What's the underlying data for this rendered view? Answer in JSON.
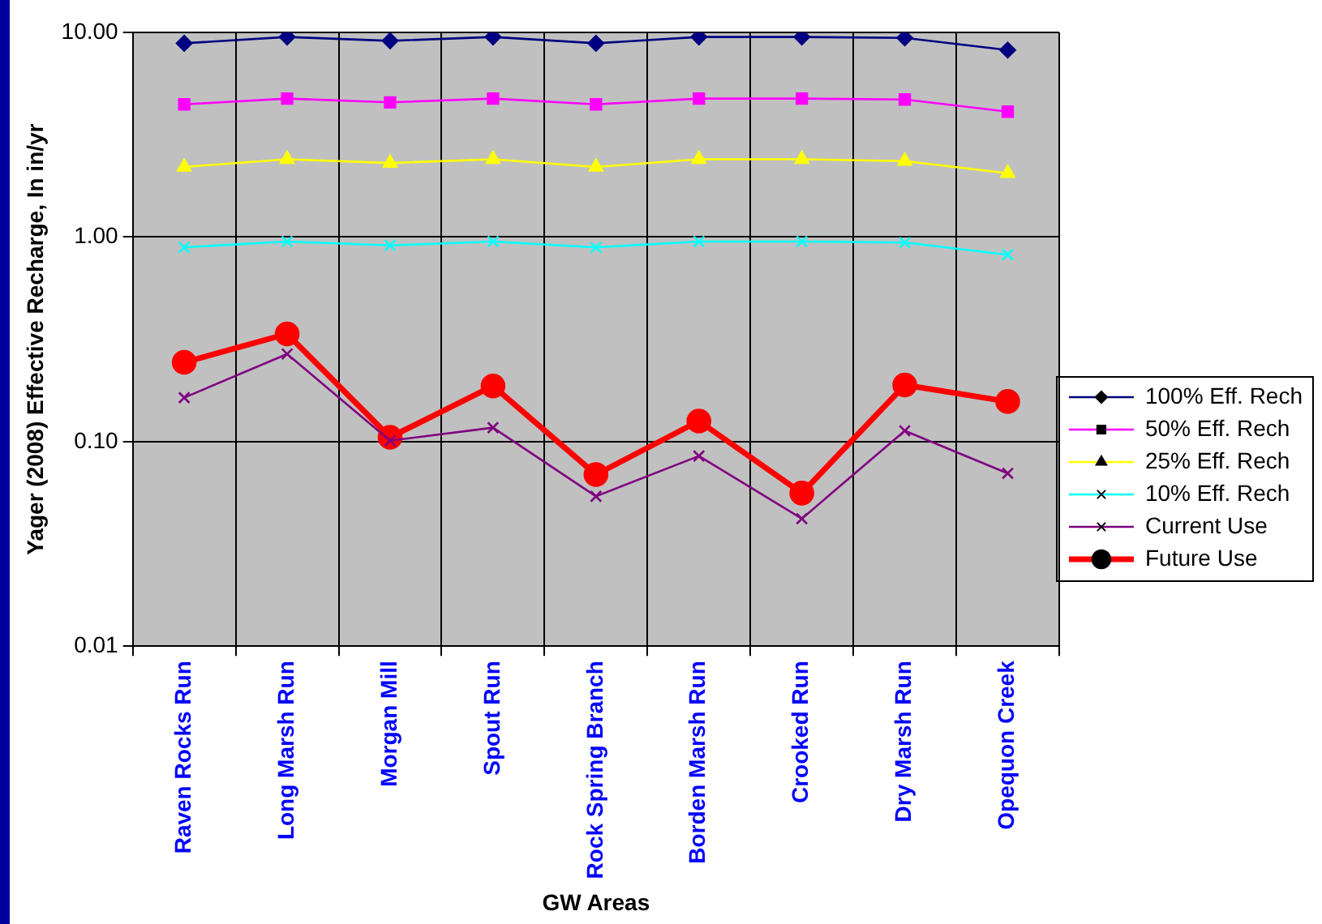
{
  "chart_data": {
    "type": "line",
    "xlabel": "GW Areas",
    "ylabel": "Yager (2008) Effective Recharge, In in/yr",
    "categories": [
      "Raven Rocks Run",
      "Long Marsh Run",
      "Morgan Mill",
      "Spout Run",
      "Rock Spring Branch",
      "Borden Marsh Run",
      "Crooked Run",
      "Dry Marsh Run",
      "Opequon Creek"
    ],
    "series": [
      {
        "name": "100% Eff. Rech",
        "color": "#000080",
        "marker": "diamond",
        "values": [
          8.85,
          9.5,
          9.1,
          9.5,
          8.85,
          9.5,
          9.5,
          9.4,
          8.2
        ]
      },
      {
        "name": "50% Eff. Rech",
        "color": "#ff00ff",
        "marker": "square",
        "values": [
          4.45,
          4.75,
          4.55,
          4.75,
          4.45,
          4.75,
          4.75,
          4.7,
          4.1
        ]
      },
      {
        "name": "25% Eff. Rech",
        "color": "#ffff00",
        "marker": "triangle",
        "values": [
          2.2,
          2.4,
          2.3,
          2.4,
          2.2,
          2.4,
          2.4,
          2.35,
          2.05
        ]
      },
      {
        "name": "10% Eff. Rech",
        "color": "#00ffff",
        "marker": "cross",
        "values": [
          0.89,
          0.95,
          0.91,
          0.95,
          0.89,
          0.95,
          0.95,
          0.94,
          0.82
        ]
      },
      {
        "name": "Current Use",
        "color": "#800080",
        "marker": "cross",
        "values": [
          0.164,
          0.268,
          0.101,
          0.117,
          0.054,
          0.085,
          0.042,
          0.113,
          0.07
        ]
      },
      {
        "name": "Future Use",
        "color": "#ff0000",
        "marker": "circle",
        "values": [
          0.244,
          0.336,
          0.105,
          0.187,
          0.069,
          0.126,
          0.056,
          0.189,
          0.157
        ]
      }
    ],
    "log": true,
    "ylim": [
      0.01,
      10
    ],
    "yticks": [
      {
        "value": 0.01,
        "label": "0.01"
      },
      {
        "value": 0.1,
        "label": "0.10"
      },
      {
        "value": 1,
        "label": "1.00"
      },
      {
        "value": 10,
        "label": "10.00"
      }
    ],
    "grid": true,
    "legend": "right",
    "line_style": "solid"
  }
}
